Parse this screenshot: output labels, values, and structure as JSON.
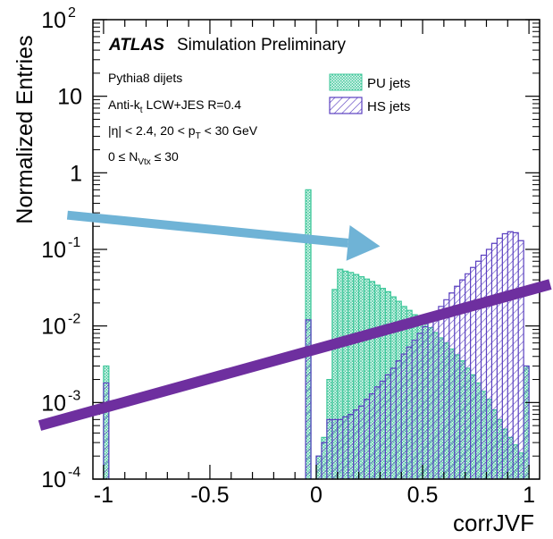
{
  "chart_data": {
    "type": "bar",
    "title": "",
    "xlabel": "corrJVF",
    "ylabel": "Normalized Entries",
    "xlim": [
      -1.05,
      1.05
    ],
    "ylim": [
      0.0001,
      100
    ],
    "y_scale": "log",
    "x_ticks": [
      "-1",
      "-0.5",
      "0",
      "0.5",
      "1"
    ],
    "y_ticks": [
      {
        "base": "10",
        "exp": "2"
      },
      {
        "base": "10",
        "exp": ""
      },
      {
        "base": "1",
        "exp": ""
      },
      {
        "base": "10",
        "exp": "-1"
      },
      {
        "base": "10",
        "exp": "-2"
      },
      {
        "base": "10",
        "exp": "-3"
      },
      {
        "base": "10",
        "exp": "-4"
      }
    ],
    "annotations": {
      "experiment": "ATLAS",
      "label": "Simulation Preliminary",
      "generator": "Pythia8 dijets",
      "jet_pre": "Anti-k",
      "jet_sub": "t",
      "jet_post": " LCW+JES R=0.4",
      "eta_cut": "|η| < 2.4, 20 < p",
      "eta_cut_sub": "T",
      "eta_cut_post": " < 30 GeV",
      "nvtx_pre": "0 ≤ N",
      "nvtx_sub": "Vtx",
      "nvtx_post": " ≤ 30"
    },
    "legend_position": "top-right",
    "series": [
      {
        "name": "PU jets",
        "color": "#3ec79a",
        "pattern": "cross-hatch",
        "bins": [
          {
            "x0": -1.0,
            "x1": -0.975,
            "y": 0.003
          },
          {
            "x0": -0.05,
            "x1": -0.025,
            "y": 0.6
          },
          {
            "x0": 0.0,
            "x1": 0.025,
            "y": 0.0002
          },
          {
            "x0": 0.025,
            "x1": 0.05,
            "y": 0.00035
          },
          {
            "x0": 0.05,
            "x1": 0.075,
            "y": 0.002
          },
          {
            "x0": 0.075,
            "x1": 0.1,
            "y": 0.03
          },
          {
            "x0": 0.1,
            "x1": 0.125,
            "y": 0.055
          },
          {
            "x0": 0.125,
            "x1": 0.15,
            "y": 0.052
          },
          {
            "x0": 0.15,
            "x1": 0.175,
            "y": 0.05
          },
          {
            "x0": 0.175,
            "x1": 0.2,
            "y": 0.047
          },
          {
            "x0": 0.2,
            "x1": 0.225,
            "y": 0.044
          },
          {
            "x0": 0.225,
            "x1": 0.25,
            "y": 0.041
          },
          {
            "x0": 0.25,
            "x1": 0.275,
            "y": 0.038
          },
          {
            "x0": 0.275,
            "x1": 0.3,
            "y": 0.034
          },
          {
            "x0": 0.3,
            "x1": 0.325,
            "y": 0.031
          },
          {
            "x0": 0.325,
            "x1": 0.35,
            "y": 0.028
          },
          {
            "x0": 0.35,
            "x1": 0.375,
            "y": 0.024
          },
          {
            "x0": 0.375,
            "x1": 0.4,
            "y": 0.021
          },
          {
            "x0": 0.4,
            "x1": 0.425,
            "y": 0.018
          },
          {
            "x0": 0.425,
            "x1": 0.45,
            "y": 0.016
          },
          {
            "x0": 0.45,
            "x1": 0.475,
            "y": 0.014
          },
          {
            "x0": 0.475,
            "x1": 0.5,
            "y": 0.0125
          },
          {
            "x0": 0.5,
            "x1": 0.525,
            "y": 0.011
          },
          {
            "x0": 0.525,
            "x1": 0.55,
            "y": 0.0095
          },
          {
            "x0": 0.55,
            "x1": 0.575,
            "y": 0.0082
          },
          {
            "x0": 0.575,
            "x1": 0.6,
            "y": 0.007
          },
          {
            "x0": 0.6,
            "x1": 0.625,
            "y": 0.006
          },
          {
            "x0": 0.625,
            "x1": 0.65,
            "y": 0.005
          },
          {
            "x0": 0.65,
            "x1": 0.675,
            "y": 0.0042
          },
          {
            "x0": 0.675,
            "x1": 0.7,
            "y": 0.0035
          },
          {
            "x0": 0.7,
            "x1": 0.725,
            "y": 0.0028
          },
          {
            "x0": 0.725,
            "x1": 0.75,
            "y": 0.0023
          },
          {
            "x0": 0.75,
            "x1": 0.775,
            "y": 0.0018
          },
          {
            "x0": 0.775,
            "x1": 0.8,
            "y": 0.0014
          },
          {
            "x0": 0.8,
            "x1": 0.825,
            "y": 0.0011
          },
          {
            "x0": 0.825,
            "x1": 0.85,
            "y": 0.0008
          },
          {
            "x0": 0.85,
            "x1": 0.875,
            "y": 0.0006
          },
          {
            "x0": 0.875,
            "x1": 0.9,
            "y": 0.00045
          },
          {
            "x0": 0.9,
            "x1": 0.925,
            "y": 0.00035
          },
          {
            "x0": 0.925,
            "x1": 0.95,
            "y": 0.00028
          },
          {
            "x0": 0.95,
            "x1": 0.975,
            "y": 0.00022
          },
          {
            "x0": 0.975,
            "x1": 1.0,
            "y": 0.003
          }
        ]
      },
      {
        "name": "HS jets",
        "color": "#5a3fc0",
        "pattern": "diagonal-hatch",
        "bins": [
          {
            "x0": -1.0,
            "x1": -0.975,
            "y": 0.0018
          },
          {
            "x0": -0.05,
            "x1": -0.025,
            "y": 0.012
          },
          {
            "x0": 0.0,
            "x1": 0.025,
            "y": 0.0002
          },
          {
            "x0": 0.025,
            "x1": 0.05,
            "y": 0.0003
          },
          {
            "x0": 0.05,
            "x1": 0.075,
            "y": 0.0006
          },
          {
            "x0": 0.075,
            "x1": 0.1,
            "y": 0.0006
          },
          {
            "x0": 0.1,
            "x1": 0.125,
            "y": 0.0006
          },
          {
            "x0": 0.125,
            "x1": 0.15,
            "y": 0.00065
          },
          {
            "x0": 0.15,
            "x1": 0.175,
            "y": 0.0007
          },
          {
            "x0": 0.175,
            "x1": 0.2,
            "y": 0.0008
          },
          {
            "x0": 0.2,
            "x1": 0.225,
            "y": 0.0009
          },
          {
            "x0": 0.225,
            "x1": 0.25,
            "y": 0.0011
          },
          {
            "x0": 0.25,
            "x1": 0.275,
            "y": 0.0013
          },
          {
            "x0": 0.275,
            "x1": 0.3,
            "y": 0.0016
          },
          {
            "x0": 0.3,
            "x1": 0.325,
            "y": 0.0019
          },
          {
            "x0": 0.325,
            "x1": 0.35,
            "y": 0.0023
          },
          {
            "x0": 0.35,
            "x1": 0.375,
            "y": 0.0028
          },
          {
            "x0": 0.375,
            "x1": 0.4,
            "y": 0.0035
          },
          {
            "x0": 0.4,
            "x1": 0.425,
            "y": 0.0043
          },
          {
            "x0": 0.425,
            "x1": 0.45,
            "y": 0.0053
          },
          {
            "x0": 0.45,
            "x1": 0.475,
            "y": 0.0065
          },
          {
            "x0": 0.475,
            "x1": 0.5,
            "y": 0.008
          },
          {
            "x0": 0.5,
            "x1": 0.525,
            "y": 0.0098
          },
          {
            "x0": 0.525,
            "x1": 0.55,
            "y": 0.012
          },
          {
            "x0": 0.55,
            "x1": 0.575,
            "y": 0.015
          },
          {
            "x0": 0.575,
            "x1": 0.6,
            "y": 0.018
          },
          {
            "x0": 0.6,
            "x1": 0.625,
            "y": 0.022
          },
          {
            "x0": 0.625,
            "x1": 0.65,
            "y": 0.027
          },
          {
            "x0": 0.65,
            "x1": 0.675,
            "y": 0.033
          },
          {
            "x0": 0.675,
            "x1": 0.7,
            "y": 0.04
          },
          {
            "x0": 0.7,
            "x1": 0.725,
            "y": 0.048
          },
          {
            "x0": 0.725,
            "x1": 0.75,
            "y": 0.058
          },
          {
            "x0": 0.75,
            "x1": 0.775,
            "y": 0.07
          },
          {
            "x0": 0.775,
            "x1": 0.8,
            "y": 0.084
          },
          {
            "x0": 0.8,
            "x1": 0.825,
            "y": 0.1
          },
          {
            "x0": 0.825,
            "x1": 0.85,
            "y": 0.12
          },
          {
            "x0": 0.85,
            "x1": 0.875,
            "y": 0.14
          },
          {
            "x0": 0.875,
            "x1": 0.9,
            "y": 0.16
          },
          {
            "x0": 0.9,
            "x1": 0.925,
            "y": 0.17
          },
          {
            "x0": 0.925,
            "x1": 0.95,
            "y": 0.165
          },
          {
            "x0": 0.95,
            "x1": 0.975,
            "y": 0.13
          },
          {
            "x0": 0.975,
            "x1": 1.0,
            "y": 0.003
          }
        ]
      }
    ],
    "overlays": [
      {
        "name": "blue-arrow",
        "color": "#6fb3d6",
        "from": [
          -1.17,
          0.28
        ],
        "to": [
          0.3,
          0.11
        ]
      },
      {
        "name": "purple-line",
        "color": "#6e2f9f",
        "from": [
          -1.3,
          0.0005
        ],
        "to": [
          1.1,
          0.035
        ]
      }
    ]
  }
}
